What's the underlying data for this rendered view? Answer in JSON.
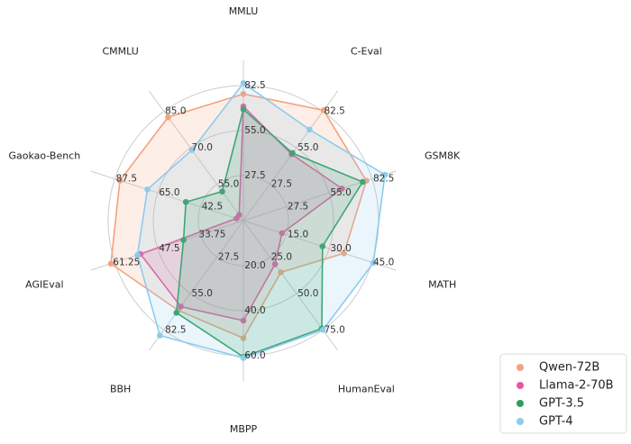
{
  "chart_data": {
    "type": "radar",
    "categories": [
      "MMLU",
      "C-Eval",
      "GSM8K",
      "MATH",
      "HumanEval",
      "MBPP",
      "BBH",
      "AGIEval",
      "Gaokao-Bench",
      "CMMLU"
    ],
    "axes": [
      {
        "lim": [
          0,
          82.5
        ],
        "ticks": [
          27.5,
          {
            "value": 55,
            "label": "55.0"
          },
          82.5
        ]
      },
      {
        "lim": [
          0,
          82.5
        ],
        "ticks": [
          27.5,
          {
            "value": 55,
            "label": "55.0"
          },
          82.5
        ]
      },
      {
        "lim": [
          0,
          82.5
        ],
        "ticks": [
          27.5,
          {
            "value": 55,
            "label": "55.0"
          },
          82.5
        ]
      },
      {
        "lim": [
          0,
          45
        ],
        "ticks": [
          {
            "value": 15,
            "label": "15.0"
          },
          {
            "value": 30,
            "label": "30.0"
          },
          {
            "value": 45,
            "label": "45.0"
          }
        ]
      },
      {
        "lim": [
          0,
          75
        ],
        "ticks": [
          {
            "value": 25,
            "label": "25.0"
          },
          {
            "value": 50,
            "label": "50.0"
          },
          {
            "value": 75,
            "label": "75.0"
          }
        ]
      },
      {
        "lim": [
          0,
          60
        ],
        "ticks": [
          {
            "value": 20,
            "label": "20.0"
          },
          {
            "value": 40,
            "label": "40.0"
          },
          {
            "value": 60,
            "label": "60.0"
          }
        ]
      },
      {
        "lim": [
          0,
          82.5
        ],
        "ticks": [
          27.5,
          {
            "value": 55,
            "label": "55.0"
          },
          82.5
        ]
      },
      {
        "lim": [
          20,
          61.25
        ],
        "ticks": [
          33.75,
          47.5,
          61.25
        ]
      },
      {
        "lim": [
          20,
          87.5
        ],
        "ticks": [
          42.5,
          {
            "value": 65,
            "label": "65.0"
          },
          87.5
        ]
      },
      {
        "lim": [
          40,
          85
        ],
        "ticks": [
          {
            "value": 55,
            "label": "55.0"
          },
          {
            "value": 70,
            "label": "70.0"
          },
          {
            "value": 85,
            "label": "85.0"
          }
        ]
      }
    ],
    "series": [
      {
        "name": "Qwen-72B",
        "color": "#f4a27e",
        "values": [
          77.4,
          83.3,
          78.9,
          35.2,
          35.4,
          52.2,
          67.7,
          62.5,
          84.8,
          82.6
        ]
      },
      {
        "name": "Llama-2-70B",
        "color": "#e9579e",
        "values": [
          69.8,
          50.1,
          63.3,
          13.5,
          29.9,
          44.4,
          64.9,
          53,
          23.6,
          42.4
        ]
      },
      {
        "name": "GPT-3.5",
        "color": "#2f9e5c",
        "values": [
          68,
          51,
          76.5,
          27.7,
          74,
          60.5,
          69.5,
          39.2,
          50.2,
          52
        ]
      },
      {
        "name": "GPT-4",
        "color": "#8ecbee",
        "values": [
          84,
          68.7,
          90.8,
          45.5,
          75,
          61,
          86.7,
          54,
          70.4,
          69.1
        ]
      }
    ],
    "legend": "lower right"
  }
}
